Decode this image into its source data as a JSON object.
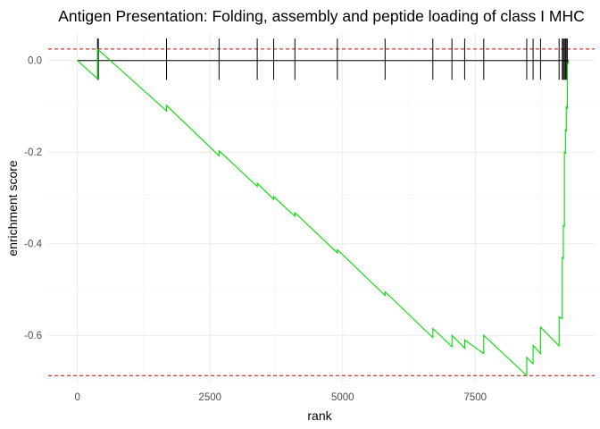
{
  "chart_data": {
    "type": "line",
    "title": "Antigen Presentation: Folding, assembly and peptide loading of class I MHC",
    "xlabel": "rank",
    "ylabel": "enrichment score",
    "xlim": [
      -550,
      9750
    ],
    "ylim": [
      -0.705,
      0.06
    ],
    "x_ticks": [
      0,
      2500,
      5000,
      7500
    ],
    "x_tick_labels": [
      "0",
      "2500",
      "5000",
      "7500"
    ],
    "y_ticks": [
      0.0,
      -0.2,
      -0.4,
      -0.6
    ],
    "y_tick_labels": [
      "0.0",
      "-0.2",
      "-0.4",
      "-0.6"
    ],
    "grid": true,
    "legend": "none",
    "series": [
      {
        "color": "#00dd00",
        "x": [
          0,
          380,
          380,
          1680,
          1680,
          2670,
          2670,
          3390,
          3390,
          3700,
          3700,
          4100,
          4100,
          4900,
          4900,
          5800,
          5800,
          6700,
          6700,
          7060,
          7060,
          7300,
          7300,
          7660,
          7660,
          8470,
          8470,
          8590,
          8590,
          8730,
          8730,
          9080,
          9080,
          9140,
          9140,
          9160,
          9160,
          9180,
          9180,
          9200,
          9200,
          9215,
          9215,
          9235,
          9235,
          9260
        ],
        "y": [
          0,
          -0.04,
          0.025,
          -0.11,
          -0.098,
          -0.208,
          -0.197,
          -0.275,
          -0.268,
          -0.303,
          -0.297,
          -0.34,
          -0.332,
          -0.42,
          -0.413,
          -0.513,
          -0.505,
          -0.605,
          -0.585,
          -0.625,
          -0.6,
          -0.628,
          -0.61,
          -0.64,
          -0.6,
          -0.688,
          -0.648,
          -0.662,
          -0.622,
          -0.64,
          -0.582,
          -0.623,
          -0.56,
          -0.563,
          -0.43,
          -0.432,
          -0.36,
          -0.362,
          -0.2,
          -0.202,
          -0.15,
          -0.155,
          -0.1,
          -0.105,
          -0.01,
          0.0
        ]
      }
    ],
    "baseline": {
      "y": 0.0,
      "x_range": [
        0,
        9260
      ],
      "color": "#000000"
    },
    "hit_ranks": [
      380,
      395,
      1680,
      2670,
      3390,
      3700,
      4100,
      4900,
      5800,
      6700,
      7060,
      7300,
      7660,
      8470,
      8590,
      8730,
      9080,
      9140,
      9160,
      9180,
      9200,
      9215,
      9235
    ],
    "hit_mark_range": [
      -0.042,
      0.048
    ],
    "threshold_lines": [
      {
        "y": 0.025,
        "color": "#cc0000",
        "style": "dashed"
      },
      {
        "y": -0.688,
        "color": "#cc0000",
        "style": "dashed"
      }
    ]
  }
}
